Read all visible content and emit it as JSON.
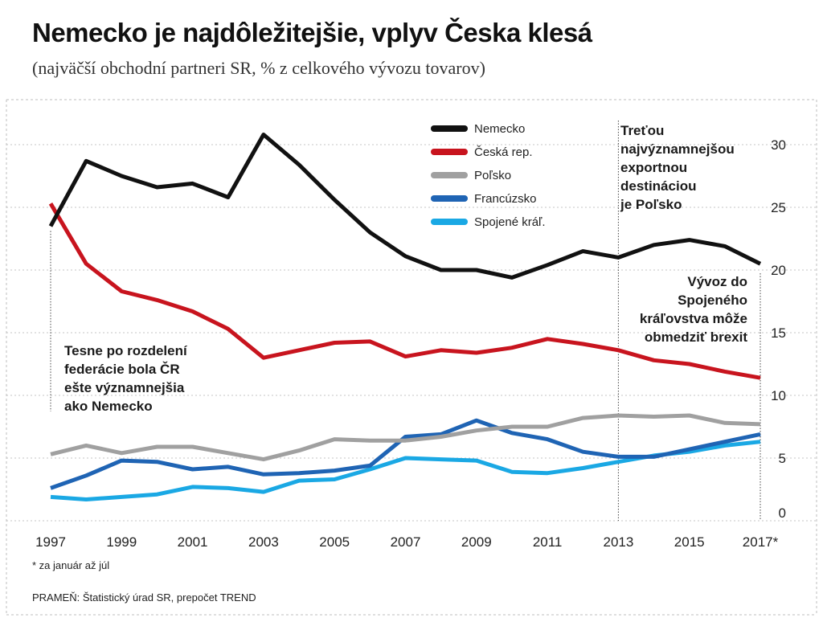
{
  "title": "Nemecko je najdôležitejšie, vplyv Česka klesá",
  "subtitle": "(najväčší obchodní partneri SR, % z celkového vývozu tovarov)",
  "footnote": "* za január až júl",
  "source": "PRAMEŇ: Štatistický úrad SR, prepočet TREND",
  "chart_data": {
    "type": "line",
    "x": [
      1997,
      1998,
      1999,
      2000,
      2001,
      2002,
      2003,
      2004,
      2005,
      2006,
      2007,
      2008,
      2009,
      2010,
      2011,
      2012,
      2013,
      2014,
      2015,
      2016,
      2017
    ],
    "x_tick_labels": [
      "1997",
      "1999",
      "2001",
      "2003",
      "2005",
      "2007",
      "2009",
      "2011",
      "2013",
      "2015",
      "2017*"
    ],
    "y_ticks": [
      0,
      5,
      10,
      15,
      20,
      25,
      30
    ],
    "ylim": [
      0,
      31
    ],
    "grid": true,
    "legend_position": "top-center",
    "series": [
      {
        "name": "Nemecko",
        "color": "#111111",
        "values": [
          23.5,
          28.7,
          27.5,
          26.6,
          26.9,
          25.8,
          30.8,
          28.4,
          25.6,
          23.0,
          21.1,
          20.0,
          20.0,
          19.4,
          20.4,
          21.5,
          21.0,
          22.0,
          22.4,
          21.9,
          20.5
        ]
      },
      {
        "name": "Česká rep.",
        "color": "#c8141e",
        "values": [
          25.3,
          20.5,
          18.3,
          17.6,
          16.7,
          15.3,
          13.0,
          13.6,
          14.2,
          14.3,
          13.1,
          13.6,
          13.4,
          13.8,
          14.5,
          14.1,
          13.6,
          12.8,
          12.5,
          11.9,
          11.4
        ]
      },
      {
        "name": "Poľsko",
        "color": "#a0a0a0",
        "values": [
          5.3,
          6.0,
          5.4,
          5.9,
          5.9,
          5.4,
          4.9,
          5.6,
          6.5,
          6.4,
          6.4,
          6.7,
          7.2,
          7.5,
          7.5,
          8.2,
          8.4,
          8.3,
          8.4,
          7.8,
          7.7
        ]
      },
      {
        "name": "Francúzsko",
        "color": "#1f64b4",
        "values": [
          2.6,
          3.6,
          4.8,
          4.7,
          4.1,
          4.3,
          3.7,
          3.8,
          4.0,
          4.4,
          6.7,
          6.9,
          8.0,
          7.0,
          6.5,
          5.5,
          5.1,
          5.1,
          5.7,
          6.3,
          6.9
        ]
      },
      {
        "name": "Spojené kráľ.",
        "color": "#1aa8e4",
        "values": [
          1.9,
          1.7,
          1.9,
          2.1,
          2.7,
          2.6,
          2.3,
          3.2,
          3.3,
          4.1,
          5.0,
          4.9,
          4.8,
          3.9,
          3.8,
          4.2,
          4.7,
          5.2,
          5.5,
          6.0,
          6.3
        ]
      }
    ],
    "annotations": [
      {
        "id": "ann-left",
        "lines": [
          "Tesne po rozdelení",
          "federácie bola ČR",
          "ešte významnejšia",
          "ako Nemecko"
        ]
      },
      {
        "id": "ann-poland",
        "lines": [
          "Treťou",
          "najvýznamnejšou",
          "exportnou",
          "destináciou",
          "je Poľsko"
        ]
      },
      {
        "id": "ann-uk",
        "lines": [
          "Vývoz do",
          "Spojeného",
          "kráľovstva môže",
          "obmedziť brexit"
        ]
      }
    ]
  }
}
